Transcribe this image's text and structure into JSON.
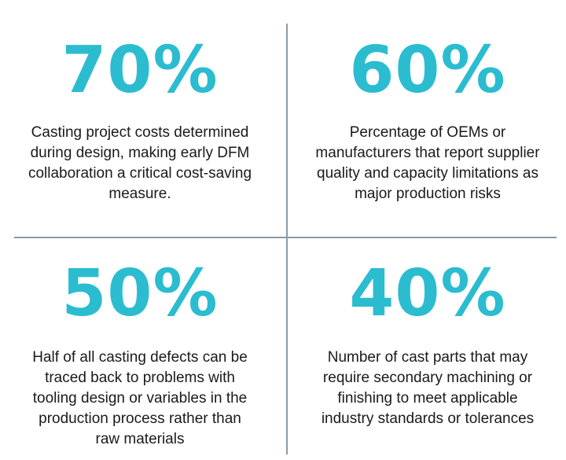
{
  "colors": {
    "accent": "#2bbcd0",
    "divider": "#8a9aa6",
    "text": "#1a1a1a",
    "background": "#ffffff"
  },
  "stats": [
    {
      "value": "70%",
      "description": "Casting project costs determined during design, making early DFM collaboration a critical cost-saving measure."
    },
    {
      "value": "60%",
      "description": "Percentage of OEMs or manufacturers that report supplier quality and capacity limitations as major production risks"
    },
    {
      "value": "50%",
      "description": "Half of all casting defects can be traced back to problems with tooling design or variables in the production process rather than raw materials"
    },
    {
      "value": "40%",
      "description": "Number of cast parts that may require secondary machining or finishing to meet applicable industry standards or tolerances"
    }
  ]
}
